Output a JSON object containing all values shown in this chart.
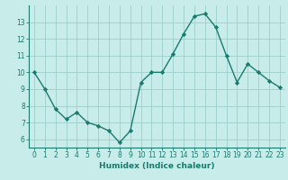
{
  "x": [
    0,
    1,
    2,
    3,
    4,
    5,
    6,
    7,
    8,
    9,
    10,
    11,
    12,
    13,
    14,
    15,
    16,
    17,
    18,
    19,
    20,
    21,
    22,
    23
  ],
  "y": [
    10,
    9,
    7.8,
    7.2,
    7.6,
    7.0,
    6.8,
    6.5,
    5.8,
    6.5,
    9.4,
    10.0,
    10.0,
    11.1,
    12.3,
    13.35,
    13.5,
    12.7,
    11.0,
    9.4,
    10.5,
    10.0,
    9.5,
    9.1
  ],
  "line_color": "#1a7a6e",
  "marker": "D",
  "markersize": 2.2,
  "linewidth": 1.0,
  "bg_color": "#c8ecea",
  "grid_color": "#9ecfca",
  "xlabel": "Humidex (Indice chaleur)",
  "xlabel_fontsize": 6.5,
  "tick_fontsize": 5.5,
  "xlim": [
    -0.5,
    23.5
  ],
  "ylim": [
    5.5,
    14.0
  ],
  "yticks": [
    6,
    7,
    8,
    9,
    10,
    11,
    12,
    13
  ],
  "xticks": [
    0,
    1,
    2,
    3,
    4,
    5,
    6,
    7,
    8,
    9,
    10,
    11,
    12,
    13,
    14,
    15,
    16,
    17,
    18,
    19,
    20,
    21,
    22,
    23
  ]
}
